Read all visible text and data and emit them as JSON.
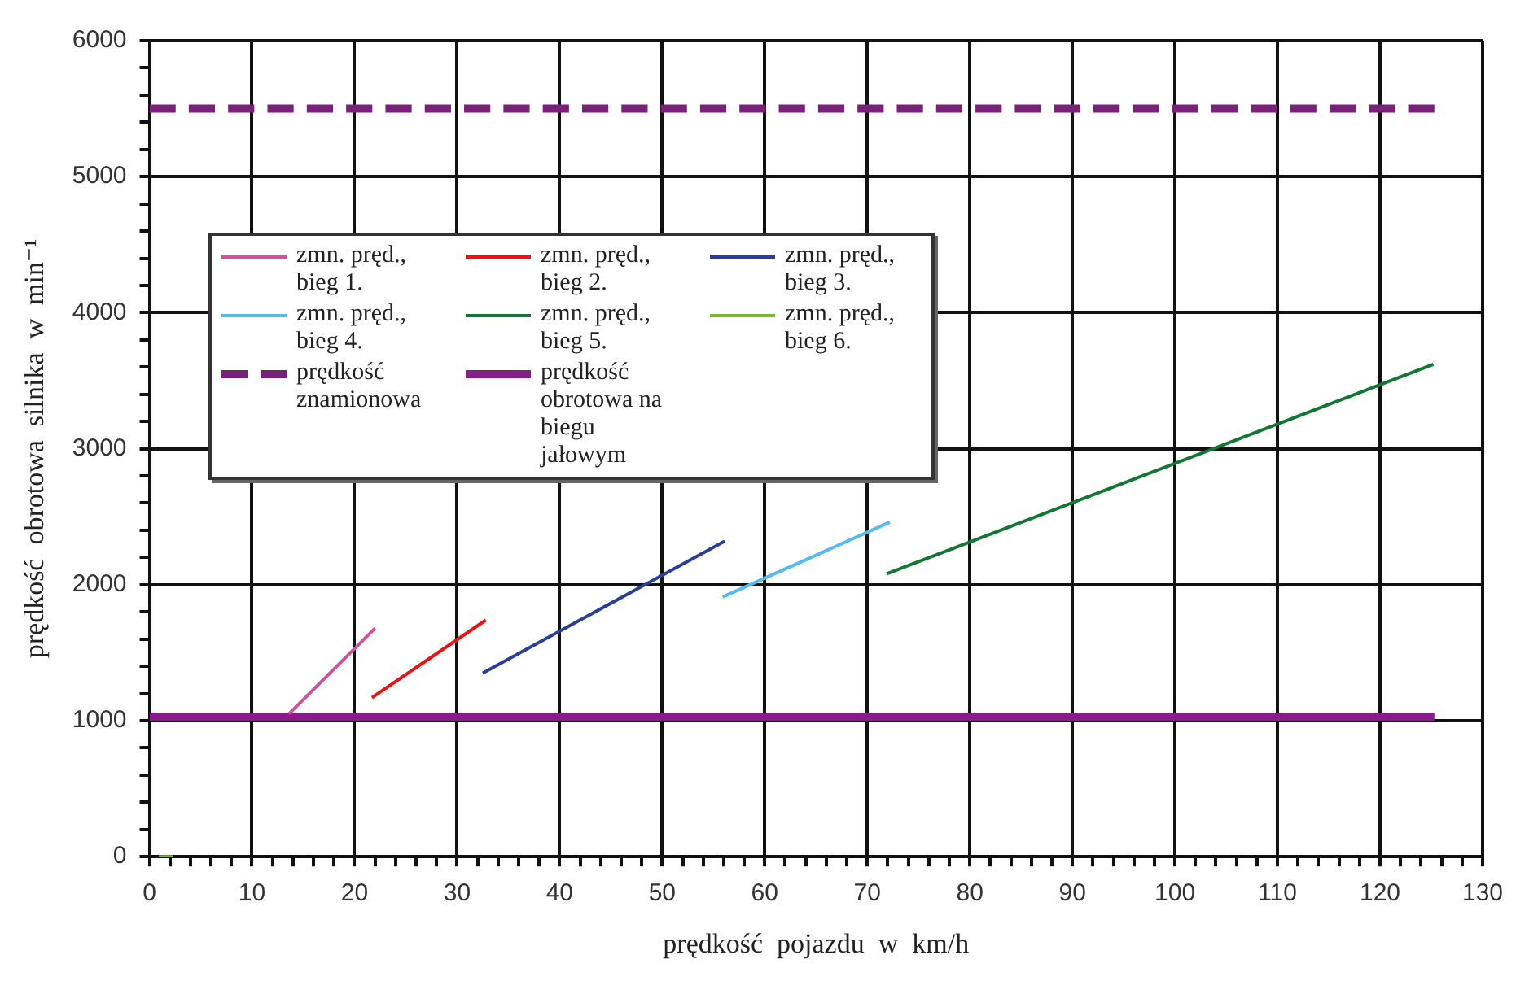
{
  "chart_data": {
    "type": "line",
    "xlabel": "prędkość  pojazdu  w  km/h",
    "ylabel": "prędkość  obrotowa  silnika  w  min⁻¹",
    "xlim": [
      0,
      130
    ],
    "ylim": [
      0,
      6000
    ],
    "xticks": [
      0,
      {
        "value": 2,
        "label": null
      },
      {
        "value": 4,
        "label": null
      },
      {
        "value": 6,
        "label": null
      },
      {
        "value": 8,
        "label": null
      },
      10,
      {
        "value": 12,
        "label": null
      },
      {
        "value": 14,
        "label": null
      },
      {
        "value": 16,
        "label": null
      },
      {
        "value": 18,
        "label": null
      },
      20,
      {
        "value": 22,
        "label": null
      },
      {
        "value": 24,
        "label": null
      },
      {
        "value": 26,
        "label": null
      },
      {
        "value": 28,
        "label": null
      },
      30,
      {
        "value": 32,
        "label": null
      },
      {
        "value": 34,
        "label": null
      },
      {
        "value": 36,
        "label": null
      },
      {
        "value": 38,
        "label": null
      },
      40,
      {
        "value": 42,
        "label": null
      },
      {
        "value": 44,
        "label": null
      },
      {
        "value": 46,
        "label": null
      },
      {
        "value": 48,
        "label": null
      },
      50,
      {
        "value": 52,
        "label": null
      },
      {
        "value": 54,
        "label": null
      },
      {
        "value": 56,
        "label": null
      },
      {
        "value": 58,
        "label": null
      },
      60,
      {
        "value": 62,
        "label": null
      },
      {
        "value": 64,
        "label": null
      },
      {
        "value": 66,
        "label": null
      },
      {
        "value": 68,
        "label": null
      },
      70,
      {
        "value": 72,
        "label": null
      },
      {
        "value": 74,
        "label": null
      },
      {
        "value": 76,
        "label": null
      },
      {
        "value": 78,
        "label": null
      },
      80,
      {
        "value": 82,
        "label": null
      },
      {
        "value": 84,
        "label": null
      },
      {
        "value": 86,
        "label": null
      },
      {
        "value": 88,
        "label": null
      },
      90,
      {
        "value": 92,
        "label": null
      },
      {
        "value": 94,
        "label": null
      },
      {
        "value": 96,
        "label": null
      },
      {
        "value": 98,
        "label": null
      },
      100,
      {
        "value": 102,
        "label": null
      },
      {
        "value": 104,
        "label": null
      },
      {
        "value": 106,
        "label": null
      },
      {
        "value": 108,
        "label": null
      },
      110,
      {
        "value": 112,
        "label": null
      },
      {
        "value": 114,
        "label": null
      },
      {
        "value": 116,
        "label": null
      },
      {
        "value": 118,
        "label": null
      },
      120,
      {
        "value": 122,
        "label": null
      },
      {
        "value": 124,
        "label": null
      },
      {
        "value": 126,
        "label": null
      },
      {
        "value": 128,
        "label": null
      },
      130
    ],
    "yticks": [
      0,
      {
        "value": 200,
        "label": null
      },
      {
        "value": 400,
        "label": null
      },
      {
        "value": 600,
        "label": null
      },
      {
        "value": 800,
        "label": null
      },
      1000,
      {
        "value": 1200,
        "label": null
      },
      {
        "value": 1400,
        "label": null
      },
      {
        "value": 1600,
        "label": null
      },
      {
        "value": 1800,
        "label": null
      },
      2000,
      {
        "value": 2200,
        "label": null
      },
      {
        "value": 2400,
        "label": null
      },
      {
        "value": 2600,
        "label": null
      },
      {
        "value": 2800,
        "label": null
      },
      3000,
      {
        "value": 3200,
        "label": null
      },
      {
        "value": 3400,
        "label": null
      },
      {
        "value": 3600,
        "label": null
      },
      {
        "value": 3800,
        "label": null
      },
      4000,
      {
        "value": 4200,
        "label": null
      },
      {
        "value": 4400,
        "label": null
      },
      {
        "value": 4600,
        "label": null
      },
      {
        "value": 4800,
        "label": null
      },
      5000,
      {
        "value": 5200,
        "label": null
      },
      {
        "value": 5400,
        "label": null
      },
      {
        "value": 5600,
        "label": null
      },
      {
        "value": 5800,
        "label": null
      },
      6000
    ],
    "grid": true,
    "legend": "top left",
    "marker": "none",
    "series": [
      {
        "name": "zmn.  pręd., bieg  1.",
        "color": "#cc5599",
        "x": [
          13.6,
          22.0
        ],
        "values": [
          1050,
          1680
        ]
      },
      {
        "name": "zmn.  pręd., bieg  2.",
        "color": "#ee1111",
        "x": [
          21.7,
          32.8
        ],
        "values": [
          1170,
          1740
        ]
      },
      {
        "name": "zmn.  pręd., bieg  3.",
        "color": "#2b3f99",
        "x": [
          32.5,
          56.1
        ],
        "values": [
          1350,
          2320
        ]
      },
      {
        "name": "zmn.  pręd., bieg  4.",
        "color": "#55bbee",
        "x": [
          55.9,
          72.2
        ],
        "values": [
          1910,
          2460
        ]
      },
      {
        "name": "zmn.  pręd., bieg  5.",
        "color": "#117733",
        "x": [
          71.9,
          125.2
        ],
        "values": [
          2080,
          3620
        ]
      },
      {
        "name": "zmn.  pręd., bieg  6.",
        "color": "#77bb33",
        "x": [
          0.9,
          2.3
        ],
        "values": [
          0,
          0
        ]
      },
      {
        "name": "prędkość znamionowa",
        "color": "#7a1f7a",
        "x": [
          0,
          125.3
        ],
        "values": [
          5500,
          5500
        ],
        "line_style": "dashed"
      },
      {
        "name": "prędkość    obrotowa na  biegu  jałowym",
        "color": "#881c88",
        "x": [
          0,
          125.3
        ],
        "values": [
          1030,
          1030
        ],
        "line_style": "solid"
      }
    ]
  }
}
